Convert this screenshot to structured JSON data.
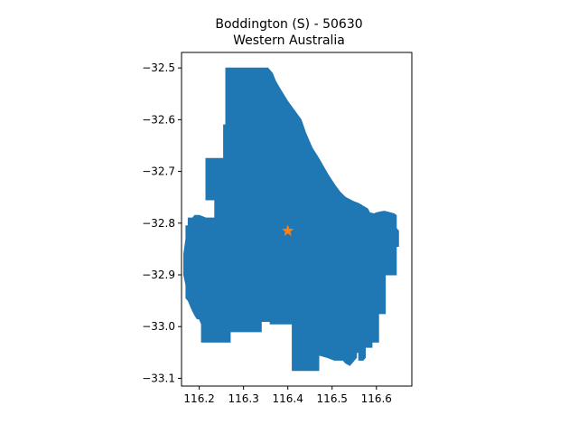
{
  "figure": {
    "title_line1": "Boddington (S) - 50630",
    "title_line2": "Western Australia"
  },
  "map_data": {
    "type": "map",
    "xlim": [
      116.16,
      116.68
    ],
    "ylim": [
      -33.115,
      -32.47
    ],
    "xticks": [
      {
        "value": 116.2,
        "label": "116.2"
      },
      {
        "value": 116.3,
        "label": "116.3"
      },
      {
        "value": 116.4,
        "label": "116.4"
      },
      {
        "value": 116.5,
        "label": "116.5"
      },
      {
        "value": 116.6,
        "label": "116.6"
      }
    ],
    "yticks": [
      {
        "value": -32.5,
        "label": "−32.5"
      },
      {
        "value": -32.6,
        "label": "−32.6"
      },
      {
        "value": -32.7,
        "label": "−32.7"
      },
      {
        "value": -32.8,
        "label": "−32.8"
      },
      {
        "value": -32.9,
        "label": "−32.9"
      },
      {
        "value": -33.0,
        "label": "−33.0"
      },
      {
        "value": -33.1,
        "label": "−33.1"
      }
    ],
    "region_color": "#1f77b4",
    "marker_color": "#ff7f0e",
    "centroid": {
      "lon": 116.4,
      "lat": -32.815
    },
    "boundary": [
      [
        116.26,
        -32.5
      ],
      [
        116.355,
        -32.5
      ],
      [
        116.365,
        -32.51
      ],
      [
        116.372,
        -32.525
      ],
      [
        116.382,
        -32.54
      ],
      [
        116.4,
        -32.565
      ],
      [
        116.43,
        -32.6
      ],
      [
        116.44,
        -32.625
      ],
      [
        116.455,
        -32.655
      ],
      [
        116.47,
        -32.675
      ],
      [
        116.48,
        -32.69
      ],
      [
        116.49,
        -32.705
      ],
      [
        116.505,
        -32.725
      ],
      [
        116.518,
        -32.74
      ],
      [
        116.53,
        -32.75
      ],
      [
        116.548,
        -32.758
      ],
      [
        116.56,
        -32.762
      ],
      [
        116.572,
        -32.768
      ],
      [
        116.58,
        -32.772
      ],
      [
        116.585,
        -32.78
      ],
      [
        116.595,
        -32.782
      ],
      [
        116.6,
        -32.78
      ],
      [
        116.61,
        -32.778
      ],
      [
        116.618,
        -32.777
      ],
      [
        116.632,
        -32.78
      ],
      [
        116.64,
        -32.782
      ],
      [
        116.645,
        -32.785
      ],
      [
        116.645,
        -32.81
      ],
      [
        116.65,
        -32.815
      ],
      [
        116.65,
        -32.845
      ],
      [
        116.645,
        -32.845
      ],
      [
        116.645,
        -32.9
      ],
      [
        116.62,
        -32.9
      ],
      [
        116.62,
        -32.975
      ],
      [
        116.605,
        -32.975
      ],
      [
        116.605,
        -33.03
      ],
      [
        116.59,
        -33.03
      ],
      [
        116.59,
        -33.04
      ],
      [
        116.575,
        -33.04
      ],
      [
        116.575,
        -33.06
      ],
      [
        116.57,
        -33.065
      ],
      [
        116.56,
        -33.065
      ],
      [
        116.56,
        -33.05
      ],
      [
        116.555,
        -33.05
      ],
      [
        116.555,
        -33.06
      ],
      [
        116.545,
        -33.07
      ],
      [
        116.54,
        -33.075
      ],
      [
        116.53,
        -33.07
      ],
      [
        116.525,
        -33.065
      ],
      [
        116.505,
        -33.065
      ],
      [
        116.49,
        -33.06
      ],
      [
        116.47,
        -33.055
      ],
      [
        116.47,
        -33.085
      ],
      [
        116.41,
        -33.085
      ],
      [
        116.41,
        -32.995
      ],
      [
        116.36,
        -32.995
      ],
      [
        116.36,
        -32.99
      ],
      [
        116.34,
        -32.99
      ],
      [
        116.34,
        -33.01
      ],
      [
        116.27,
        -33.01
      ],
      [
        116.27,
        -33.03
      ],
      [
        116.205,
        -33.03
      ],
      [
        116.205,
        -32.995
      ],
      [
        116.2,
        -32.985
      ],
      [
        116.195,
        -32.985
      ],
      [
        116.19,
        -32.978
      ],
      [
        116.185,
        -32.97
      ],
      [
        116.18,
        -32.96
      ],
      [
        116.175,
        -32.95
      ],
      [
        116.17,
        -32.945
      ],
      [
        116.17,
        -32.92
      ],
      [
        116.165,
        -32.9
      ],
      [
        116.165,
        -32.86
      ],
      [
        116.17,
        -32.83
      ],
      [
        116.17,
        -32.805
      ],
      [
        116.175,
        -32.805
      ],
      [
        116.175,
        -32.79
      ],
      [
        116.185,
        -32.79
      ],
      [
        116.19,
        -32.785
      ],
      [
        116.2,
        -32.785
      ],
      [
        116.215,
        -32.79
      ],
      [
        116.235,
        -32.79
      ],
      [
        116.235,
        -32.755
      ],
      [
        116.215,
        -32.755
      ],
      [
        116.215,
        -32.675
      ],
      [
        116.255,
        -32.675
      ],
      [
        116.255,
        -32.61
      ],
      [
        116.26,
        -32.61
      ]
    ]
  }
}
